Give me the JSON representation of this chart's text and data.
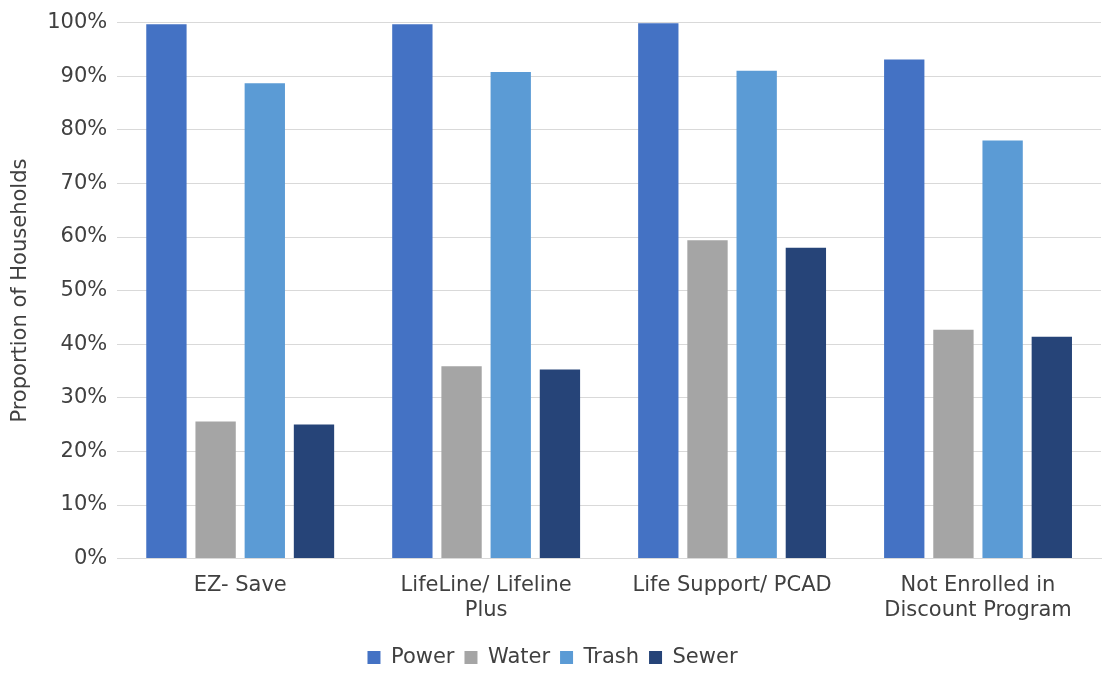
{
  "chart_data": {
    "type": "bar",
    "ylabel": "Proportion of Households",
    "categories": [
      "EZ- Save",
      "LifeLine/ Lifeline Plus",
      "Life Support/ PCAD",
      "Not Enrolled in Discount Program"
    ],
    "series": [
      {
        "name": "Power",
        "color": "#4472c4",
        "values": [
          99.7,
          99.7,
          99.9,
          93.1
        ]
      },
      {
        "name": "Water",
        "color": "#a5a5a5",
        "values": [
          25.6,
          35.9,
          59.4,
          42.7
        ]
      },
      {
        "name": "Trash",
        "color": "#5b9bd5",
        "values": [
          88.7,
          90.8,
          91.0,
          78.0
        ]
      },
      {
        "name": "Sewer",
        "color": "#264478",
        "values": [
          25.0,
          35.3,
          58.0,
          41.4
        ]
      }
    ],
    "ylim": [
      0,
      100
    ],
    "yticks": [
      {
        "value": 0,
        "label": "0%"
      },
      {
        "value": 10,
        "label": "10%"
      },
      {
        "value": 20,
        "label": "20%"
      },
      {
        "value": 30,
        "label": "30%"
      },
      {
        "value": 40,
        "label": "40%"
      },
      {
        "value": 50,
        "label": "50%"
      },
      {
        "value": 60,
        "label": "60%"
      },
      {
        "value": 70,
        "label": "70%"
      },
      {
        "value": 80,
        "label": "80%"
      },
      {
        "value": 90,
        "label": "90%"
      },
      {
        "value": 100,
        "label": "100%"
      }
    ],
    "grid": "y",
    "legend": "bottom"
  }
}
